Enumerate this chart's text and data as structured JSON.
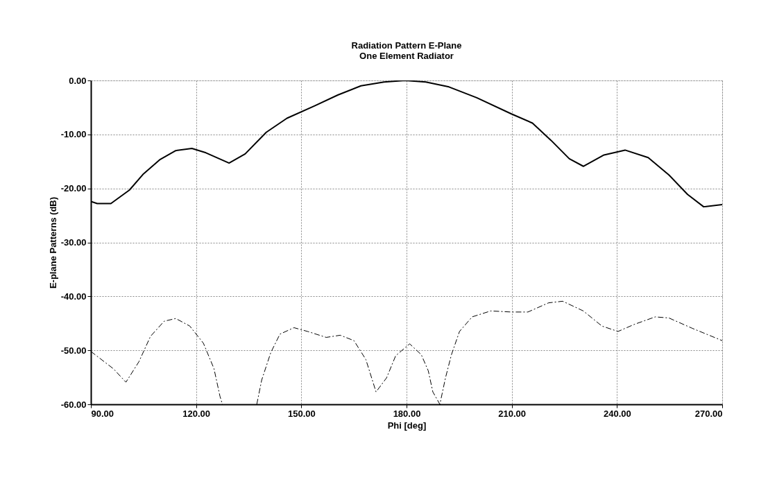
{
  "chart_data": {
    "type": "line",
    "title": "Radiation Pattern E-Plane",
    "subtitle": "One Element Radiator",
    "xlabel": "Phi [deg]",
    "ylabel": "E-plane Patterns (dB)",
    "xlim": [
      90,
      270
    ],
    "ylim": [
      -60,
      0
    ],
    "xticks": [
      {
        "value": 90,
        "label": "90.00"
      },
      {
        "value": 120,
        "label": "120.00"
      },
      {
        "value": 150,
        "label": "150.00"
      },
      {
        "value": 180,
        "label": "180.00"
      },
      {
        "value": 210,
        "label": "210.00"
      },
      {
        "value": 240,
        "label": "240.00"
      },
      {
        "value": 270,
        "label": "270.00"
      }
    ],
    "yticks": [
      {
        "value": -60,
        "label": "-60.00"
      },
      {
        "value": -50,
        "label": "-50.00"
      },
      {
        "value": -40,
        "label": "-40.00"
      },
      {
        "value": -30,
        "label": "-30.00"
      },
      {
        "value": -20,
        "label": "-20.00"
      },
      {
        "value": -10,
        "label": "-10.00"
      },
      {
        "value": 0,
        "label": "0.00"
      }
    ],
    "grid": true,
    "marker": "none",
    "series": [
      {
        "color": "#000000",
        "line_style": "solid",
        "x": [
          90,
          91.8,
          95.7,
          101,
          105,
          109.6,
          114.2,
          118.8,
          122.8,
          129.4,
          134,
          140,
          145.9,
          153.8,
          160.4,
          167,
          173.6,
          179.6,
          185.5,
          192.1,
          200,
          209.9,
          215.9,
          221.2,
          226.4,
          230.4,
          236.3,
          242.3,
          248.9,
          254.8,
          260.1,
          264.7,
          270
        ],
        "values": [
          -22.4,
          -22.8,
          -22.8,
          -20.3,
          -17.3,
          -14.7,
          -13.0,
          -12.6,
          -13.4,
          -15.3,
          -13.6,
          -9.6,
          -7.0,
          -4.7,
          -2.7,
          -1.0,
          -0.3,
          0,
          -0.3,
          -1.2,
          -3.2,
          -6.2,
          -7.9,
          -11.1,
          -14.5,
          -15.9,
          -13.8,
          -12.9,
          -14.3,
          -17.5,
          -21.1,
          -23.4,
          -23.0
        ]
      },
      {
        "color": "#000000",
        "line_style": "dashed",
        "x": [
          90,
          96.4,
          100,
          103.7,
          107,
          110.9,
          114.2,
          118.2,
          122.1,
          125.1,
          126.8,
          127.5,
          132,
          137.3,
          138.7,
          141.3,
          143.9,
          147.9,
          151.8,
          157.1,
          161.1,
          165,
          168.4,
          171.3,
          174.3,
          176.9,
          179.6,
          180.9,
          184.2,
          186.2,
          187.5,
          189.5,
          191.1,
          192.8,
          195.1,
          198.7,
          204,
          209.9,
          214.6,
          220.5,
          224.5,
          230.4,
          235.7,
          240.3,
          244.9,
          250.9,
          254.8,
          261.4,
          270
        ],
        "values": [
          -50.2,
          -53.4,
          -55.9,
          -52.1,
          -47.4,
          -44.6,
          -44.1,
          -45.5,
          -48.7,
          -53.4,
          -58.5,
          -60,
          null,
          -60,
          -55.5,
          -50.4,
          -47.0,
          -45.8,
          -46.5,
          -47.6,
          -47.2,
          -48.2,
          -51.7,
          -57.7,
          -55.1,
          -51.0,
          -49.5,
          -48.8,
          -50.8,
          -53.8,
          -57.7,
          -60,
          -55.1,
          -50.8,
          -46.5,
          -43.8,
          -42.7,
          -42.9,
          -42.9,
          -41.2,
          -40.9,
          -42.7,
          -45.5,
          -46.5,
          -45.2,
          -43.8,
          -44.0,
          -45.9,
          -48.2
        ]
      }
    ]
  }
}
